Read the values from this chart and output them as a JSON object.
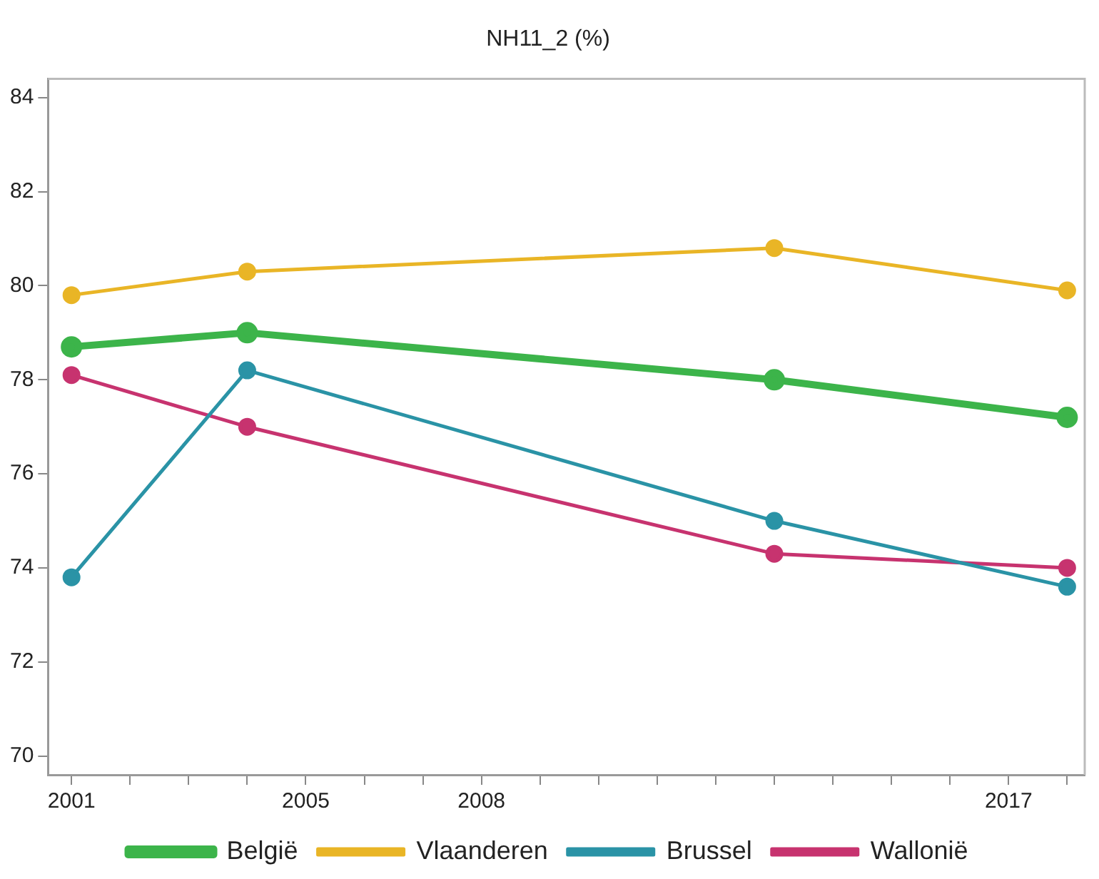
{
  "chart_data": {
    "type": "line",
    "title": "NH11_2 (%)",
    "x": [
      2001,
      2004,
      2013,
      2018
    ],
    "series": [
      {
        "name": "België",
        "color": "#3cb44a",
        "values": [
          78.7,
          79.0,
          78.0,
          77.2
        ]
      },
      {
        "name": "Vlaanderen",
        "color": "#e9b526",
        "values": [
          79.8,
          80.3,
          80.8,
          79.9
        ]
      },
      {
        "name": "Brussel",
        "color": "#2a93a6",
        "values": [
          73.8,
          78.2,
          75.0,
          73.6
        ]
      },
      {
        "name": "Wallonië",
        "color": "#c7336f",
        "values": [
          78.1,
          77.0,
          74.3,
          74.0
        ]
      }
    ],
    "xlim": [
      2000.6,
      2018.3
    ],
    "xticks": [
      2001,
      {
        "value": 2002,
        "label": null
      },
      {
        "value": 2003,
        "label": null
      },
      {
        "value": 2004,
        "label": null
      },
      2005,
      {
        "value": 2006,
        "label": null
      },
      {
        "value": 2007,
        "label": null
      },
      2008,
      {
        "value": 2009,
        "label": null
      },
      {
        "value": 2010,
        "label": null
      },
      {
        "value": 2011,
        "label": null
      },
      {
        "value": 2012,
        "label": null
      },
      {
        "value": 2013,
        "label": null
      },
      {
        "value": 2014,
        "label": null
      },
      {
        "value": 2015,
        "label": null
      },
      {
        "value": 2016,
        "label": null
      },
      2017,
      {
        "value": 2018,
        "label": null
      }
    ],
    "ylim": [
      69.6,
      84.4
    ],
    "yticks": [
      70,
      72,
      74,
      76,
      78,
      80,
      82,
      84
    ],
    "grid": false,
    "legend": "bottom",
    "marker": "circle",
    "line_style": "solid"
  }
}
